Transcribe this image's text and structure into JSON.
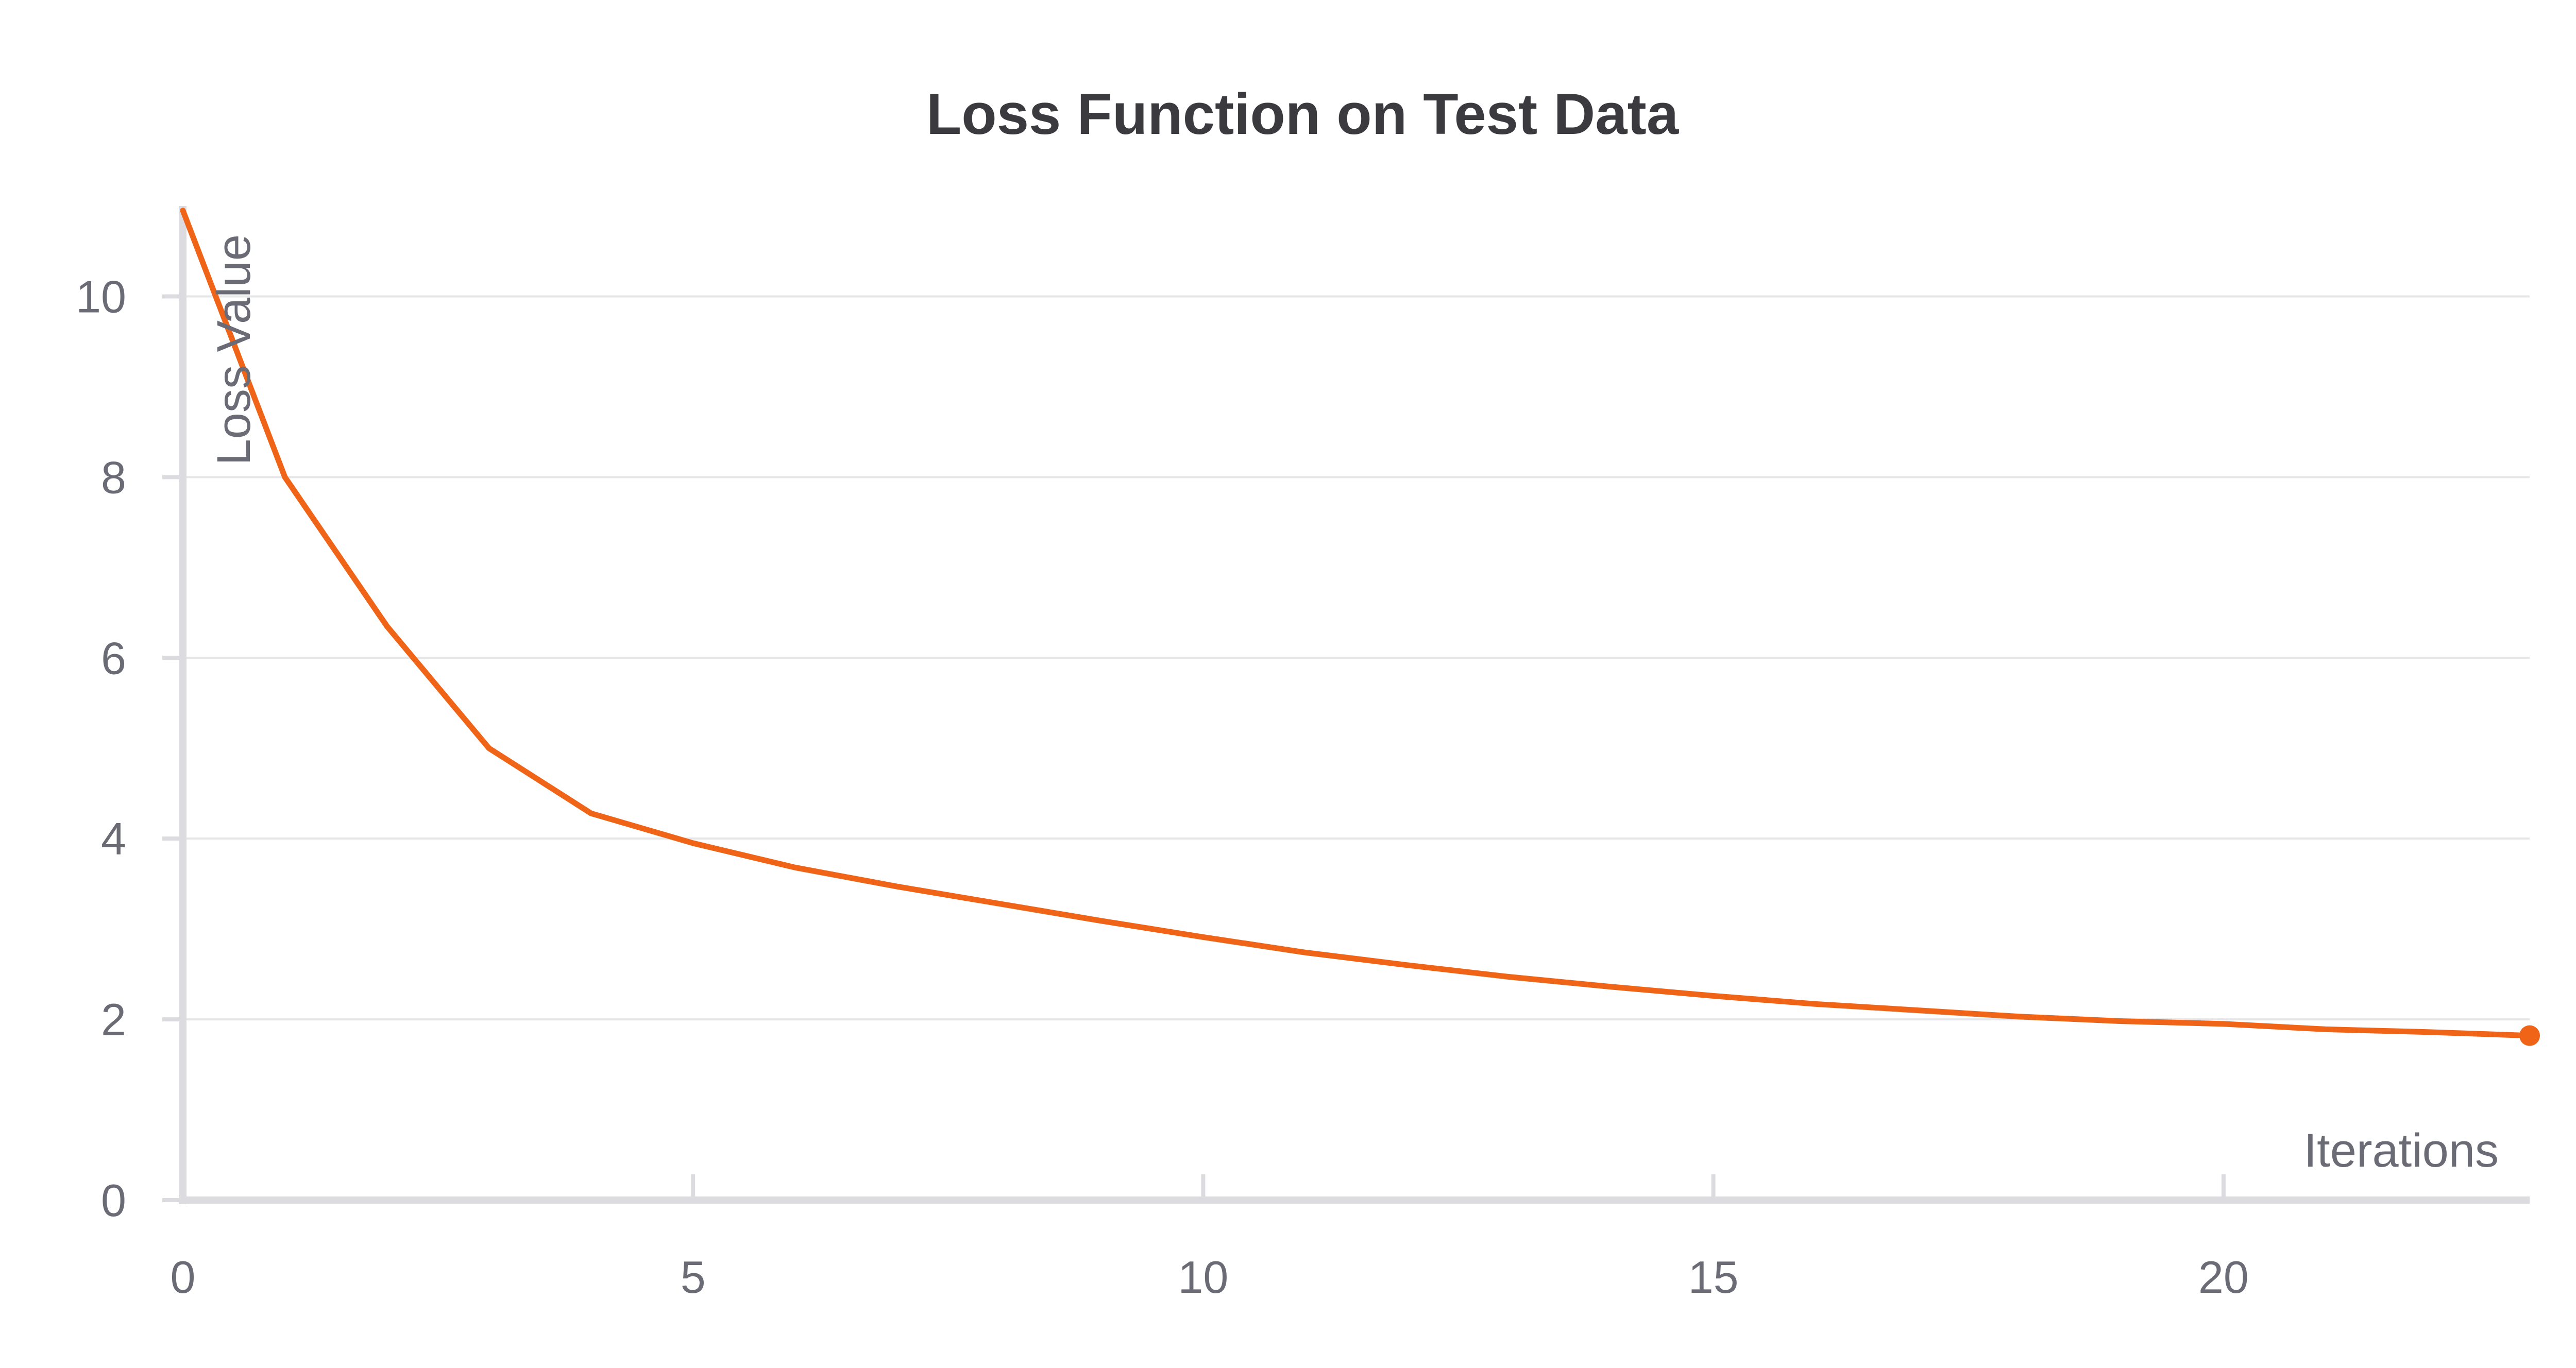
{
  "chart_data": {
    "type": "line",
    "title": "Loss Function on Test Data",
    "xlabel": "Iterations",
    "ylabel": "Loss Value",
    "xlim": [
      0,
      23
    ],
    "ylim": [
      0,
      11
    ],
    "xticks": [
      0,
      5,
      10,
      15,
      20
    ],
    "yticks": [
      0,
      2,
      4,
      6,
      8,
      10
    ],
    "grid": "horizontal",
    "line_color": "#f06418",
    "end_marker": true,
    "series": [
      {
        "x": [
          0,
          1,
          2,
          3,
          4,
          5,
          6,
          7,
          8,
          9,
          10,
          11,
          12,
          13,
          14,
          15,
          16,
          17,
          18,
          19,
          20,
          21,
          22,
          23
        ],
        "values": [
          10.95,
          8.0,
          6.35,
          5.0,
          4.28,
          3.95,
          3.68,
          3.47,
          3.28,
          3.09,
          2.91,
          2.74,
          2.6,
          2.47,
          2.36,
          2.26,
          2.17,
          2.1,
          2.03,
          1.98,
          1.95,
          1.89,
          1.86,
          1.82
        ]
      }
    ]
  }
}
